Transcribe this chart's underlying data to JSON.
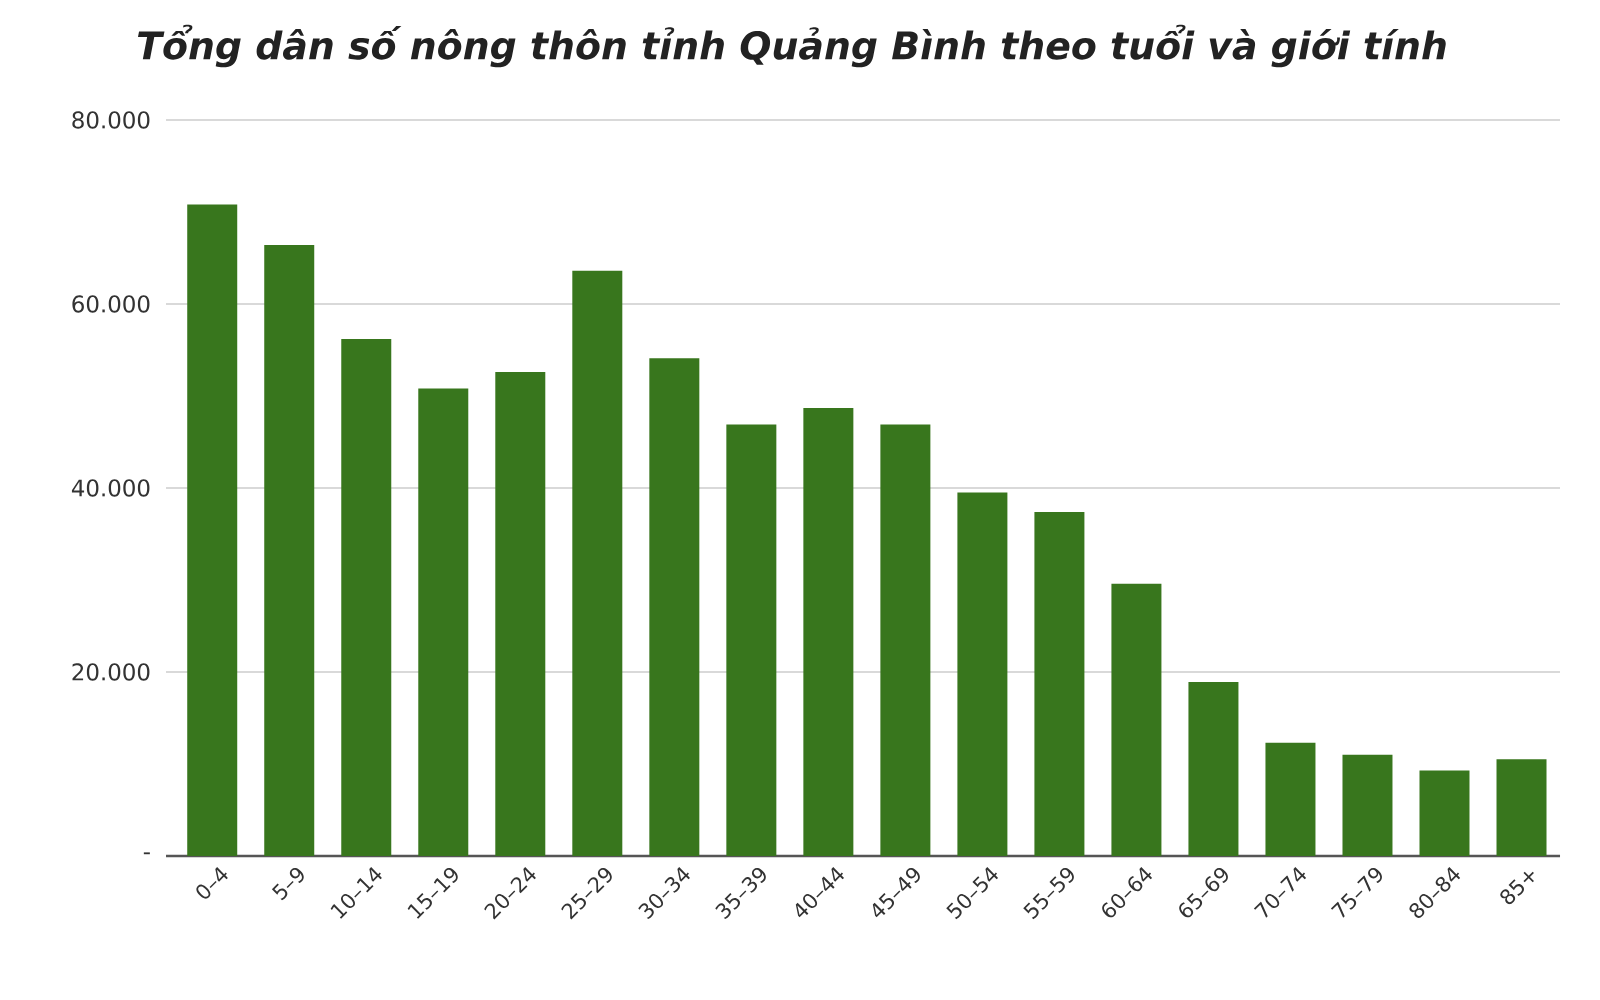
{
  "chart_data": {
    "type": "bar",
    "title": "Tổng dân số nông thôn tỉnh Quảng Bình theo tuổi và giới tính",
    "categories": [
      "0–4",
      "5–9",
      "10–14",
      "15–19",
      "20–24",
      "25–29",
      "30–34",
      "35–39",
      "40–44",
      "45–49",
      "50–54",
      "55–59",
      "60–64",
      "65–69",
      "70–74",
      "75–79",
      "80–84",
      "85+"
    ],
    "values": [
      70800,
      66400,
      56200,
      50800,
      52600,
      63600,
      54100,
      46900,
      48700,
      46900,
      39500,
      37400,
      29600,
      18900,
      12300,
      11000,
      9300,
      10500
    ],
    "color": "#38761d",
    "ylim": [
      0,
      80000
    ],
    "yticks": [
      {
        "value": 0,
        "label": "-"
      },
      {
        "value": 20000,
        "label": "20.000"
      },
      {
        "value": 40000,
        "label": "40.000"
      },
      {
        "value": 60000,
        "label": "60.000"
      },
      {
        "value": 80000,
        "label": "80.000"
      }
    ],
    "grid": "y"
  }
}
